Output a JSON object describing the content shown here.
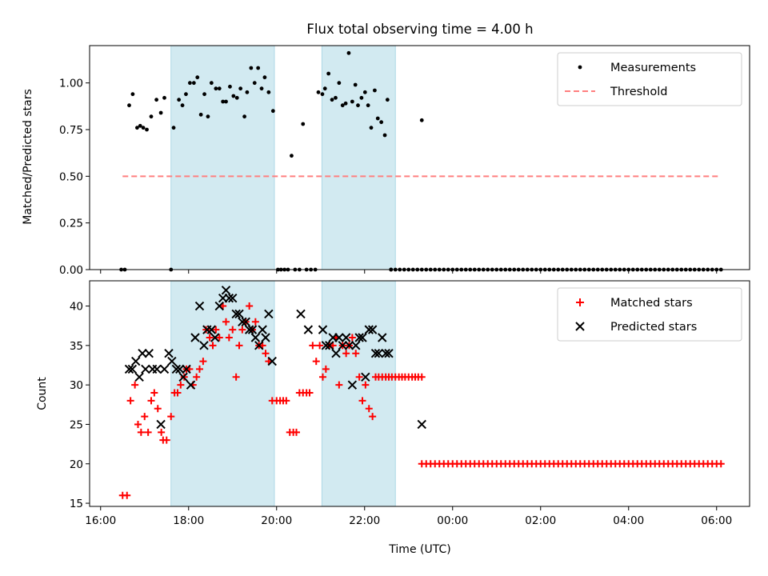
{
  "colors": {
    "band": "#add8e6",
    "threshold": "#ff7f7f",
    "matched": "#ff0000",
    "predicted": "#000000",
    "measurement": "#000000"
  },
  "chart_data": [
    {
      "type": "scatter",
      "panel": "top",
      "title": "Flux total observing time = 4.00 h",
      "xlabel": "",
      "ylabel": "Matched/Predicted stars",
      "x_unit": "hours since 16:00 UTC",
      "xlim": [
        -0.25,
        14.75
      ],
      "ylim": [
        0.0,
        1.2
      ],
      "yticks": [
        0.0,
        0.25,
        0.5,
        0.75,
        1.0
      ],
      "ytick_labels": [
        "0.00",
        "0.25",
        "0.50",
        "0.75",
        "1.00"
      ],
      "xticks": [
        0,
        2,
        4,
        6,
        8,
        10,
        12,
        14
      ],
      "shaded_intervals": [
        [
          1.6,
          3.95
        ],
        [
          5.03,
          6.7
        ]
      ],
      "threshold": {
        "label": "Threshold",
        "y": 0.5,
        "x_range": [
          0.5,
          14.1
        ]
      },
      "legend": {
        "placement": "top-right",
        "entries": [
          "Measurements",
          "Threshold"
        ]
      },
      "series": [
        {
          "name": "Measurements",
          "x": [
            0.47,
            0.55,
            0.65,
            0.73,
            0.83,
            0.9,
            0.97,
            1.05,
            1.15,
            1.27,
            1.37,
            1.45,
            1.6,
            1.66,
            1.78,
            1.86,
            1.94,
            2.03,
            2.12,
            2.2,
            2.28,
            2.36,
            2.44,
            2.52,
            2.62,
            2.7,
            2.78,
            2.85,
            2.94,
            3.02,
            3.1,
            3.18,
            3.27,
            3.33,
            3.42,
            3.5,
            3.58,
            3.66,
            3.73,
            3.82,
            3.92,
            4.03,
            4.1,
            4.18,
            4.26,
            4.34,
            4.42,
            4.52,
            4.6,
            4.68,
            4.78,
            4.88,
            4.95,
            5.04,
            5.1,
            5.18,
            5.26,
            5.34,
            5.42,
            5.5,
            5.57,
            5.64,
            5.72,
            5.79,
            5.85,
            5.93,
            6.01,
            6.08,
            6.15,
            6.23,
            6.3,
            6.38,
            6.46,
            6.52,
            6.6
          ],
          "y": [
            0,
            0,
            0.88,
            0.94,
            0.76,
            0.77,
            0.76,
            0.75,
            0.82,
            0.91,
            0.84,
            0.92,
            0,
            0.76,
            0.91,
            0.88,
            0.94,
            1.0,
            1.0,
            1.03,
            0.83,
            0.94,
            0.82,
            1.0,
            0.97,
            0.97,
            0.9,
            0.9,
            0.98,
            0.93,
            0.92,
            0.97,
            0.82,
            0.95,
            1.08,
            1.0,
            1.08,
            0.97,
            1.03,
            0.95,
            0.85,
            0,
            0,
            0,
            0,
            0.61,
            0,
            0,
            0.78,
            0,
            0,
            0,
            0.95,
            0.94,
            0.97,
            1.05,
            0.91,
            0.92,
            1.0,
            0.88,
            0.89,
            1.16,
            0.9,
            0.99,
            0.88,
            0.92,
            0.95,
            0.88,
            0.76,
            0.96,
            0.81,
            0.79,
            0.72,
            0.91,
            0
          ]
        },
        {
          "name": "Measurements (zero run)",
          "x_range": [
            6.6,
            14.1
          ],
          "y": 0
        },
        {
          "name": "Measurements (late)",
          "x": [
            7.3
          ],
          "y": [
            0.8
          ]
        }
      ]
    },
    {
      "type": "scatter",
      "panel": "bottom",
      "title": "",
      "xlabel": "Time (UTC)",
      "ylabel": "Count",
      "x_unit": "hours since 16:00 UTC",
      "xlim": [
        -0.25,
        14.75
      ],
      "ylim": [
        14.6,
        43.2
      ],
      "yticks": [
        15,
        20,
        25,
        30,
        35,
        40
      ],
      "ytick_labels": [
        "15",
        "20",
        "25",
        "30",
        "35",
        "40"
      ],
      "xticks": [
        0,
        2,
        4,
        6,
        8,
        10,
        12,
        14
      ],
      "xtick_labels": [
        "16:00",
        "18:00",
        "20:00",
        "22:00",
        "00:00",
        "02:00",
        "04:00",
        "06:00"
      ],
      "shaded_intervals": [
        [
          1.6,
          3.95
        ],
        [
          5.03,
          6.7
        ]
      ],
      "legend": {
        "placement": "top-right",
        "entries": [
          "Matched stars",
          "Predicted stars"
        ]
      },
      "series": [
        {
          "name": "Matched stars",
          "marker": "+",
          "x": [
            0.5,
            0.6,
            0.68,
            0.78,
            0.85,
            0.92,
            1.0,
            1.08,
            1.15,
            1.22,
            1.3,
            1.38,
            1.42,
            1.5,
            1.6,
            1.68,
            1.75,
            1.82,
            1.9,
            1.95,
            2.02,
            2.1,
            2.18,
            2.25,
            2.33,
            2.4,
            2.48,
            2.55,
            2.62,
            2.7,
            2.78,
            2.85,
            2.92,
            3.0,
            3.08,
            3.15,
            3.22,
            3.3,
            3.38,
            3.45,
            3.52,
            3.6,
            3.68,
            3.75,
            3.82,
            3.9,
            4.0,
            4.08,
            4.15,
            4.22,
            4.3,
            4.38,
            4.45,
            4.52,
            4.6,
            4.68,
            4.75,
            4.82,
            4.9,
            4.98,
            5.05,
            5.12,
            5.2,
            5.28,
            5.35,
            5.42,
            5.5,
            5.58,
            5.65,
            5.72,
            5.8,
            5.88,
            5.95,
            6.02,
            6.1,
            6.18,
            6.25,
            6.32,
            6.4,
            6.48,
            6.55,
            6.62,
            6.7,
            6.78,
            6.85,
            6.92,
            7.0,
            7.08,
            7.15,
            7.22,
            7.3
          ],
          "y": [
            16,
            16,
            28,
            30,
            25,
            24,
            26,
            24,
            28,
            29,
            27,
            24,
            23,
            23,
            26,
            29,
            29,
            30,
            31,
            32,
            32,
            30,
            31,
            32,
            33,
            37,
            36,
            35,
            37,
            36,
            40,
            38,
            36,
            37,
            31,
            35,
            37,
            38,
            40,
            37,
            38,
            35,
            35,
            34,
            33,
            28,
            28,
            28,
            28,
            28,
            24,
            24,
            24,
            29,
            29,
            29,
            29,
            35,
            33,
            35,
            31,
            32,
            35,
            35,
            36,
            30,
            35,
            34,
            35,
            36,
            34,
            31,
            28,
            30,
            27,
            26,
            31,
            31,
            31,
            31,
            31,
            31,
            31,
            31,
            31,
            31,
            31,
            31,
            31,
            31,
            31
          ]
        },
        {
          "name": "Matched stars (constant run)",
          "marker": "+",
          "x_range": [
            7.3,
            14.1
          ],
          "y": 20
        },
        {
          "name": "Predicted stars",
          "marker": "x",
          "x": [
            0.65,
            0.72,
            0.8,
            0.88,
            0.95,
            1.02,
            1.1,
            1.18,
            1.28,
            1.37,
            1.45,
            1.55,
            1.62,
            1.72,
            1.8,
            1.88,
            1.95,
            2.05,
            2.15,
            2.25,
            2.35,
            2.42,
            2.52,
            2.6,
            2.7,
            2.78,
            2.85,
            2.92,
            3.0,
            3.08,
            3.15,
            3.22,
            3.3,
            3.38,
            3.45,
            3.52,
            3.6,
            3.68,
            3.75,
            3.82,
            3.9,
            4.55,
            4.72,
            5.05,
            5.12,
            5.2,
            5.28,
            5.35,
            5.42,
            5.5,
            5.58,
            5.65,
            5.72,
            5.8,
            5.88,
            5.95,
            6.02,
            6.1,
            6.18,
            6.25,
            6.32,
            6.4,
            6.48,
            6.55,
            7.3
          ],
          "y": [
            32,
            32,
            33,
            31,
            34,
            32,
            34,
            32,
            32,
            25,
            32,
            34,
            33,
            32,
            32,
            31,
            32,
            30,
            36,
            40,
            35,
            37,
            37,
            36,
            40,
            41,
            42,
            41,
            41,
            39,
            39,
            38,
            38,
            37,
            37,
            36,
            35,
            37,
            36,
            39,
            33,
            39,
            37,
            37,
            35,
            35,
            36,
            34,
            36,
            35,
            36,
            35,
            30,
            35,
            36,
            36,
            31,
            37,
            37,
            34,
            34,
            36,
            34,
            34,
            25
          ]
        }
      ]
    }
  ]
}
